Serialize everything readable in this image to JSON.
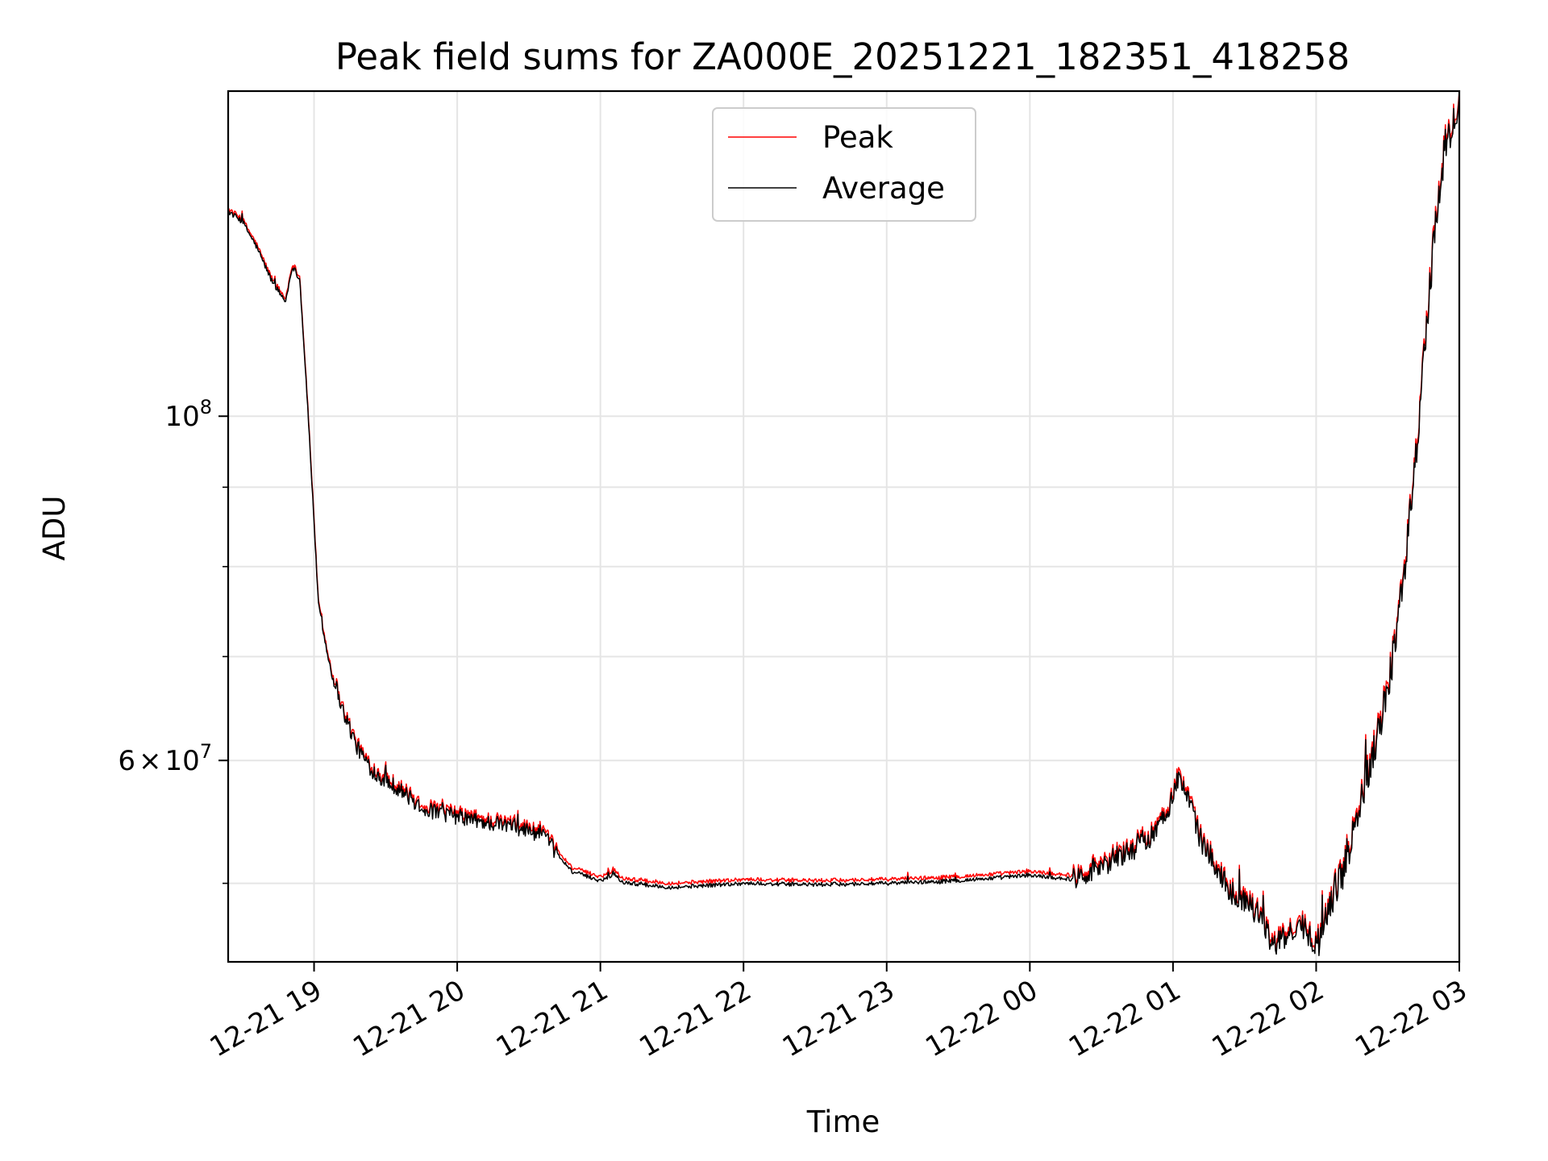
{
  "chart_data": {
    "type": "line",
    "title": "Peak field sums for ZA000E_20251221_182351_418258",
    "xlabel": "Time",
    "ylabel": "ADU",
    "yscale": "log",
    "grid": true,
    "legend_position": "upper center",
    "x_unit": "hours after 2025-12-21 18:00",
    "xlim": [
      0.4,
      9.0
    ],
    "ylim": [
      44500000,
      162000000
    ],
    "x_ticks": [
      {
        "value": 1,
        "label": "12-21 19"
      },
      {
        "value": 2,
        "label": "12-21 20"
      },
      {
        "value": 3,
        "label": "12-21 21"
      },
      {
        "value": 4,
        "label": "12-21 22"
      },
      {
        "value": 5,
        "label": "12-21 23"
      },
      {
        "value": 6,
        "label": "12-22 00"
      },
      {
        "value": 7,
        "label": "12-22 01"
      },
      {
        "value": 8,
        "label": "12-22 02"
      },
      {
        "value": 9,
        "label": "12-22 03"
      }
    ],
    "y_major_ticks": [
      {
        "value": 100000000,
        "base": "10",
        "exp": "8"
      },
      {
        "value": 60000000,
        "mant": "6",
        "times": "×",
        "base": "10",
        "exp": "7"
      }
    ],
    "y_minor_ticks": [
      50000000,
      70000000,
      80000000,
      90000000
    ],
    "series": [
      {
        "name": "Peak",
        "color": "#ff0000",
        "points": [
          [
            0.4,
            136000000
          ],
          [
            0.5,
            134000000
          ],
          [
            0.6,
            129000000
          ],
          [
            0.7,
            123000000
          ],
          [
            0.8,
            119000000
          ],
          [
            0.85,
            125500000
          ],
          [
            0.9,
            123000000
          ],
          [
            0.95,
            104000000
          ],
          [
            1.0,
            86000000
          ],
          [
            1.03,
            76000000
          ],
          [
            1.1,
            70000000
          ],
          [
            1.2,
            65000000
          ],
          [
            1.3,
            61500000
          ],
          [
            1.4,
            59500000
          ],
          [
            1.5,
            58500000
          ],
          [
            1.6,
            57800000
          ],
          [
            1.7,
            56700000
          ],
          [
            1.8,
            56000000
          ],
          [
            2.0,
            55500000
          ],
          [
            2.2,
            55000000
          ],
          [
            2.4,
            54700000
          ],
          [
            2.6,
            54000000
          ],
          [
            2.7,
            52500000
          ],
          [
            2.8,
            51200000
          ],
          [
            3.0,
            50500000
          ],
          [
            3.1,
            51000000
          ],
          [
            3.15,
            50400000
          ],
          [
            3.3,
            50200000
          ],
          [
            3.5,
            50000000
          ],
          [
            4.0,
            50300000
          ],
          [
            4.5,
            50200000
          ],
          [
            5.0,
            50300000
          ],
          [
            5.5,
            50500000
          ],
          [
            6.0,
            50900000
          ],
          [
            6.3,
            50600000
          ],
          [
            6.5,
            51700000
          ],
          [
            6.7,
            52800000
          ],
          [
            6.9,
            54400000
          ],
          [
            7.05,
            59000000
          ],
          [
            7.2,
            53500000
          ],
          [
            7.4,
            49700000
          ],
          [
            7.6,
            48300000
          ],
          [
            7.7,
            45800000
          ],
          [
            7.9,
            47300000
          ],
          [
            8.0,
            45900000
          ],
          [
            8.1,
            48800000
          ],
          [
            8.2,
            51700000
          ],
          [
            8.4,
            61500000
          ],
          [
            8.5,
            67000000
          ],
          [
            8.6,
            77500000
          ],
          [
            8.7,
            95500000
          ],
          [
            8.8,
            124000000
          ],
          [
            8.85,
            138000000
          ],
          [
            8.9,
            150000000
          ],
          [
            9.0,
            160000000
          ]
        ]
      },
      {
        "name": "Average",
        "color": "#000000",
        "points": [
          [
            0.4,
            135500000
          ],
          [
            0.5,
            133500000
          ],
          [
            0.6,
            128500000
          ],
          [
            0.7,
            122500000
          ],
          [
            0.8,
            118500000
          ],
          [
            0.85,
            125000000
          ],
          [
            0.9,
            122500000
          ],
          [
            0.95,
            103500000
          ],
          [
            1.0,
            85500000
          ],
          [
            1.03,
            75700000
          ],
          [
            1.1,
            69700000
          ],
          [
            1.2,
            64700000
          ],
          [
            1.3,
            61200000
          ],
          [
            1.4,
            59200000
          ],
          [
            1.5,
            58200000
          ],
          [
            1.6,
            57500000
          ],
          [
            1.7,
            56400000
          ],
          [
            1.8,
            55700000
          ],
          [
            2.0,
            55200000
          ],
          [
            2.2,
            54700000
          ],
          [
            2.4,
            54400000
          ],
          [
            2.6,
            53700000
          ],
          [
            2.7,
            52200000
          ],
          [
            2.8,
            50900000
          ],
          [
            3.0,
            50200000
          ],
          [
            3.1,
            50700000
          ],
          [
            3.15,
            50100000
          ],
          [
            3.3,
            49900000
          ],
          [
            3.5,
            49700000
          ],
          [
            4.0,
            50000000
          ],
          [
            4.5,
            49900000
          ],
          [
            5.0,
            50000000
          ],
          [
            5.5,
            50200000
          ],
          [
            6.0,
            50600000
          ],
          [
            6.3,
            50300000
          ],
          [
            6.5,
            51400000
          ],
          [
            6.7,
            52500000
          ],
          [
            6.9,
            54100000
          ],
          [
            7.05,
            58600000
          ],
          [
            7.2,
            53200000
          ],
          [
            7.4,
            49400000
          ],
          [
            7.6,
            48000000
          ],
          [
            7.7,
            45500000
          ],
          [
            7.9,
            47000000
          ],
          [
            8.0,
            45600000
          ],
          [
            8.1,
            48500000
          ],
          [
            8.2,
            51400000
          ],
          [
            8.4,
            61000000
          ],
          [
            8.5,
            66500000
          ],
          [
            8.6,
            77000000
          ],
          [
            8.7,
            94800000
          ],
          [
            8.8,
            123000000
          ],
          [
            8.85,
            137000000
          ],
          [
            8.9,
            149000000
          ],
          [
            9.0,
            159000000
          ]
        ]
      }
    ]
  }
}
